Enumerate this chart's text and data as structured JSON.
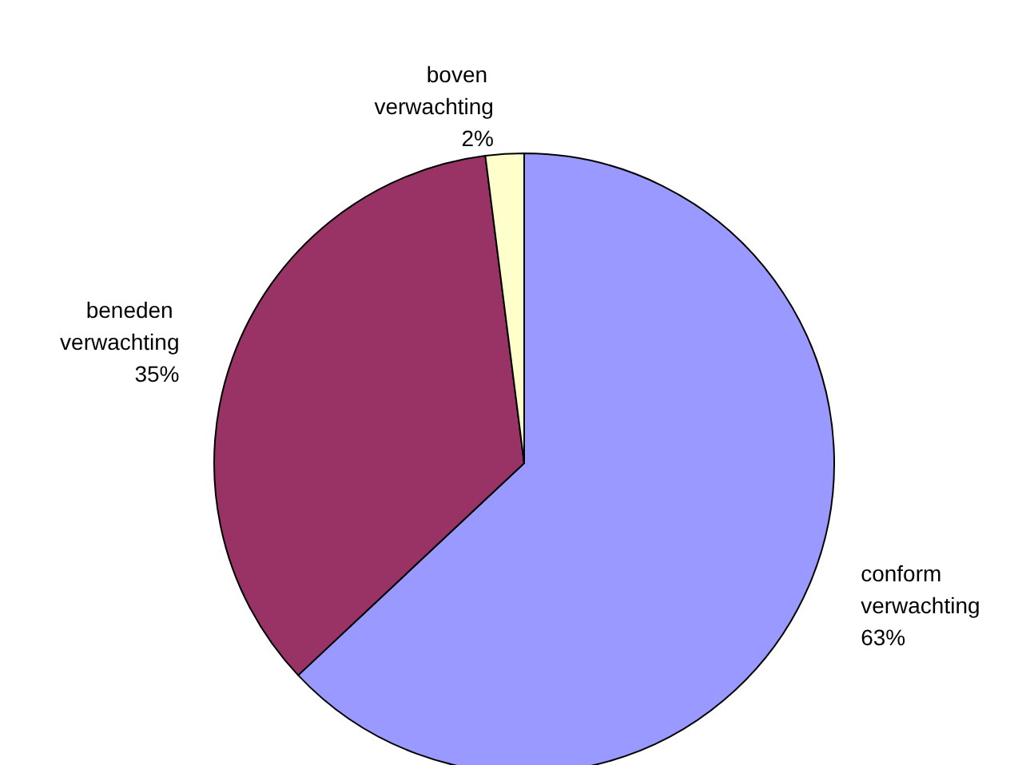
{
  "chart_data": {
    "type": "pie",
    "categories": [
      "conform verwachting",
      "beneden verwachting",
      "boven verwachting"
    ],
    "values": [
      63,
      35,
      2
    ],
    "colors": [
      "#9999ff",
      "#993366",
      "#ffffcc"
    ],
    "value_labels": [
      "63%",
      "35%",
      "2%"
    ]
  }
}
